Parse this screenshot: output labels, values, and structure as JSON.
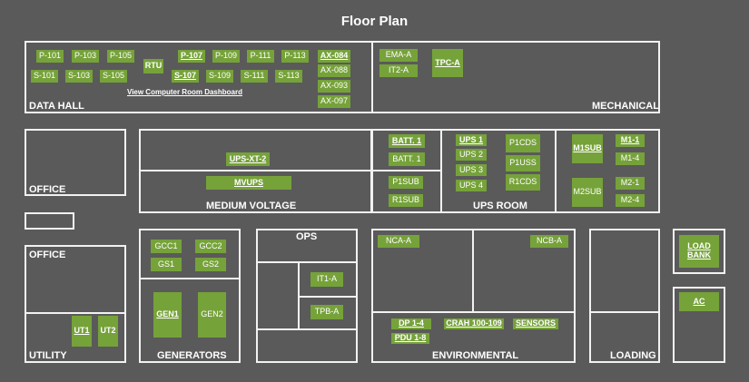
{
  "title": "Floor Plan",
  "rooms": {
    "data_hall": "DATA HALL",
    "mechanical": "MECHANICAL",
    "office_1": "OFFICE",
    "office_2": "OFFICE",
    "medium_voltage": "MEDIUM VOLTAGE",
    "ups_room": "UPS ROOM",
    "ops": "OPS",
    "utility": "UTILITY",
    "generators": "GENERATORS",
    "environmental": "ENVIRONMENTAL",
    "loading": "LOADING"
  },
  "links": {
    "dashboard": "View Computer Room Dashboard"
  },
  "equipment": {
    "p101": "P-101",
    "p103": "P-103",
    "p105": "P-105",
    "rtu": "RTU",
    "p107": "P-107",
    "p109": "P-109",
    "p111": "P-111",
    "p113": "P-113",
    "ax084": "AX-084",
    "s101": "S-101",
    "s103": "S-103",
    "s105": "S-105",
    "s107": "S-107",
    "s109": "S-109",
    "s111": "S-111",
    "s113": "S-113",
    "ax088": "AX-088",
    "ax093": "AX-093",
    "ax097": "AX-097",
    "ema_a": "EMA-A",
    "it2_a": "IT2-A",
    "tpc_a": "TPC-A",
    "ups_xt_2": "UPS-XT-2",
    "mvups": "MVUPS",
    "batt1_a": "BATT. 1",
    "batt1_b": "BATT. 1",
    "p1sub": "P1SUB",
    "r1sub": "R1SUB",
    "ups1": "UPS 1",
    "ups2": "UPS 2",
    "ups3": "UPS 3",
    "ups4": "UPS 4",
    "p1cds": "P1CDS",
    "p1uss": "P1USS",
    "r1cds": "R1CDS",
    "m1sub": "M1SUB",
    "m1_1": "M1-1",
    "m1_4": "M1-4",
    "m2sub": "M2SUB",
    "m2_1": "M2-1",
    "m2_4": "M2-4",
    "gcc1": "GCC1",
    "gcc2": "GCC2",
    "gs1": "GS1",
    "gs2": "GS2",
    "gen1": "GEN1",
    "gen2": "GEN2",
    "it1_a": "IT1-A",
    "tpb_a": "TPB-A",
    "ut1": "UT1",
    "ut2": "UT2",
    "nca_a": "NCA-A",
    "ncb_a": "NCB-A",
    "dp1_4": "DP 1-4",
    "crah": "CRAH 100-109",
    "sensors": "SENSORS",
    "pdu1_8": "PDU 1-8",
    "load_bank": "LOAD BANK",
    "ac": "AC"
  },
  "colors": {
    "background": "#5a5a5a",
    "equipment": "#76a23a",
    "walls": "#f2f2f2"
  }
}
